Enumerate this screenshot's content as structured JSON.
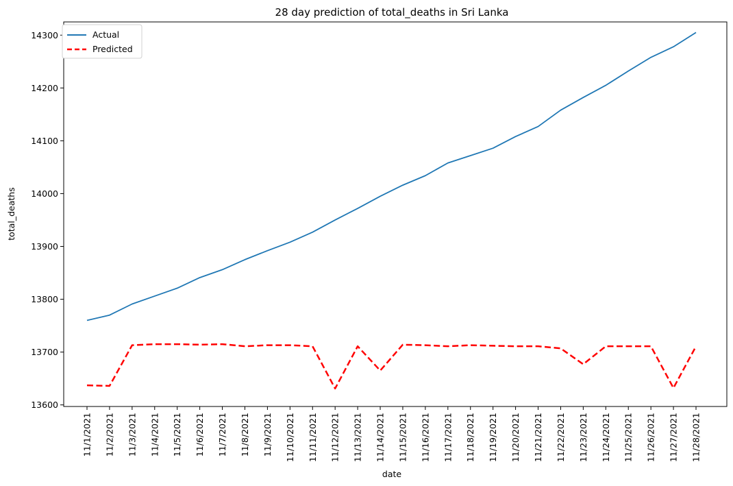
{
  "chart_data": {
    "type": "line",
    "title": "28 day prediction of total_deaths in Sri Lanka",
    "xlabel": "date",
    "ylabel": "total_deaths",
    "ylim": [
      13597,
      14325
    ],
    "yticks": [
      13600,
      13700,
      13800,
      13900,
      14000,
      14100,
      14200,
      14300
    ],
    "grid": false,
    "legend_position": "top-left",
    "categories": [
      "11/1/2021",
      "11/2/2021",
      "11/3/2021",
      "11/4/2021",
      "11/5/2021",
      "11/6/2021",
      "11/7/2021",
      "11/8/2021",
      "11/9/2021",
      "11/10/2021",
      "11/11/2021",
      "11/12/2021",
      "11/13/2021",
      "11/14/2021",
      "11/15/2021",
      "11/16/2021",
      "11/17/2021",
      "11/18/2021",
      "11/19/2021",
      "11/20/2021",
      "11/21/2021",
      "11/22/2021",
      "11/23/2021",
      "11/24/2021",
      "11/25/2021",
      "11/26/2021",
      "11/27/2021",
      "11/28/2021"
    ],
    "series": [
      {
        "name": "Actual",
        "color": "#1f77b4",
        "style": "solid",
        "values": [
          13760,
          13770,
          13791,
          13806,
          13821,
          13841,
          13856,
          13875,
          13892,
          13908,
          13927,
          13950,
          13972,
          13995,
          14016,
          14034,
          14058,
          14072,
          14086,
          14108,
          14127,
          14158,
          14182,
          14205,
          14232,
          14258,
          14278,
          14305
        ]
      },
      {
        "name": "Predicted",
        "color": "#ff0000",
        "style": "dashed",
        "values": [
          13637,
          13636,
          13713,
          13715,
          13715,
          13714,
          13715,
          13711,
          13713,
          13713,
          13711,
          13631,
          13711,
          13665,
          13714,
          13713,
          13711,
          13713,
          13712,
          13711,
          13711,
          13707,
          13677,
          13711,
          13711,
          13711,
          13632,
          13711
        ]
      }
    ]
  }
}
